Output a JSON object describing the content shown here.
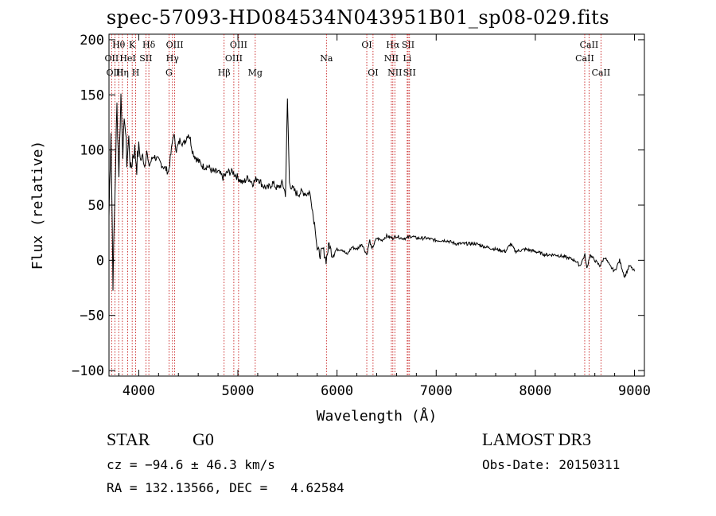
{
  "chart_data": {
    "type": "line",
    "title": "spec-57093-HD084534N043951B01_sp08-029.fits",
    "xlabel": "Wavelength (Å)",
    "ylabel": "Flux (relative)",
    "xlim": [
      3700,
      9100
    ],
    "ylim": [
      -105,
      205
    ],
    "x_ticks": [
      4000,
      5000,
      6000,
      7000,
      8000,
      9000
    ],
    "y_ticks": [
      -100,
      -50,
      0,
      50,
      100,
      150,
      200
    ],
    "grid": false,
    "series": [
      {
        "name": "flux",
        "color": "#000000",
        "x": [
          3700,
          3720,
          3740,
          3760,
          3780,
          3800,
          3820,
          3840,
          3860,
          3880,
          3900,
          3920,
          3940,
          3960,
          3980,
          4000,
          4020,
          4040,
          4060,
          4080,
          4100,
          4150,
          4200,
          4250,
          4300,
          4330,
          4350,
          4380,
          4420,
          4450,
          4500,
          4520,
          4540,
          4560,
          4600,
          4650,
          4700,
          4750,
          4800,
          4850,
          4900,
          4950,
          5000,
          5050,
          5100,
          5150,
          5200,
          5250,
          5300,
          5350,
          5400,
          5450,
          5480,
          5500,
          5520,
          5550,
          5600,
          5650,
          5700,
          5720,
          5740,
          5760,
          5780,
          5800,
          5830,
          5860,
          5890,
          5920,
          5950,
          6000,
          6050,
          6100,
          6150,
          6200,
          6250,
          6300,
          6330,
          6350,
          6400,
          6450,
          6500,
          6560,
          6600,
          6650,
          6700,
          6750,
          6800,
          6900,
          7000,
          7100,
          7200,
          7300,
          7400,
          7500,
          7600,
          7700,
          7750,
          7800,
          7900,
          8000,
          8100,
          8200,
          8300,
          8400,
          8450,
          8500,
          8520,
          8550,
          8600,
          8650,
          8700,
          8750,
          8800,
          8850,
          8900,
          8950,
          9000
        ],
        "y": [
          40,
          120,
          -20,
          60,
          140,
          80,
          150,
          100,
          130,
          90,
          110,
          80,
          95,
          100,
          85,
          105,
          90,
          95,
          85,
          100,
          85,
          95,
          90,
          85,
          80,
          100,
          115,
          100,
          110,
          105,
          115,
          110,
          100,
          95,
          90,
          85,
          85,
          80,
          80,
          75,
          80,
          80,
          75,
          70,
          75,
          70,
          75,
          68,
          65,
          70,
          65,
          70,
          60,
          145,
          70,
          65,
          60,
          62,
          60,
          62,
          55,
          40,
          30,
          10,
          5,
          10,
          0,
          15,
          5,
          10,
          10,
          5,
          12,
          10,
          15,
          5,
          18,
          10,
          20,
          18,
          22,
          20,
          22,
          20,
          20,
          22,
          20,
          20,
          18,
          18,
          15,
          15,
          15,
          12,
          10,
          8,
          15,
          8,
          10,
          8,
          5,
          5,
          3,
          0,
          -5,
          5,
          -8,
          5,
          0,
          -5,
          3,
          -5,
          -10,
          0,
          -15,
          -5,
          -10
        ]
      }
    ],
    "annotations": [
      {
        "label": "Hθ",
        "wavelength": 3798,
        "row": 1
      },
      {
        "label": "OII",
        "wavelength": 3727,
        "row": 2
      },
      {
        "label": "OIII",
        "wavelength": 3760,
        "row": 3
      },
      {
        "label": "K",
        "wavelength": 3934,
        "row": 1
      },
      {
        "label": "HeI",
        "wavelength": 3889,
        "row": 2
      },
      {
        "label": "Hη",
        "wavelength": 3835,
        "row": 3
      },
      {
        "label": "H",
        "wavelength": 3969,
        "row": 3
      },
      {
        "label": "SII",
        "wavelength": 4072,
        "row": 2
      },
      {
        "label": "Hδ",
        "wavelength": 4102,
        "row": 1
      },
      {
        "label": "OIII",
        "wavelength": 4363,
        "row": 1
      },
      {
        "label": "Hγ",
        "wavelength": 4340,
        "row": 2
      },
      {
        "label": "G",
        "wavelength": 4305,
        "row": 3
      },
      {
        "label": "Hβ",
        "wavelength": 4861,
        "row": 3
      },
      {
        "label": "OIII",
        "wavelength": 4959,
        "row": 2
      },
      {
        "label": "OIII",
        "wavelength": 5007,
        "row": 1
      },
      {
        "label": "Mg",
        "wavelength": 5175,
        "row": 3
      },
      {
        "label": "Na",
        "wavelength": 5893,
        "row": 2
      },
      {
        "label": "OI",
        "wavelength": 6300,
        "row": 1
      },
      {
        "label": "OI",
        "wavelength": 6363,
        "row": 3
      },
      {
        "label": "Hα",
        "wavelength": 6563,
        "row": 1
      },
      {
        "label": "NII",
        "wavelength": 6548,
        "row": 2
      },
      {
        "label": "NII",
        "wavelength": 6583,
        "row": 3
      },
      {
        "label": "SII",
        "wavelength": 6717,
        "row": 1
      },
      {
        "label": "Li",
        "wavelength": 6708,
        "row": 2
      },
      {
        "label": "SII",
        "wavelength": 6731,
        "row": 3
      },
      {
        "label": "CaII",
        "wavelength": 8542,
        "row": 1
      },
      {
        "label": "CaII",
        "wavelength": 8498,
        "row": 2
      },
      {
        "label": "CaII",
        "wavelength": 8662,
        "row": 3
      }
    ]
  },
  "info": {
    "object_class": "STAR",
    "subclass": "G0",
    "survey": "LAMOST DR3",
    "redshift_line": "cz = −94.6 ± 46.3 km/s",
    "obs_date": "Obs-Date: 20150311",
    "coords": "RA = 132.13566, DEC =   4.62584"
  }
}
